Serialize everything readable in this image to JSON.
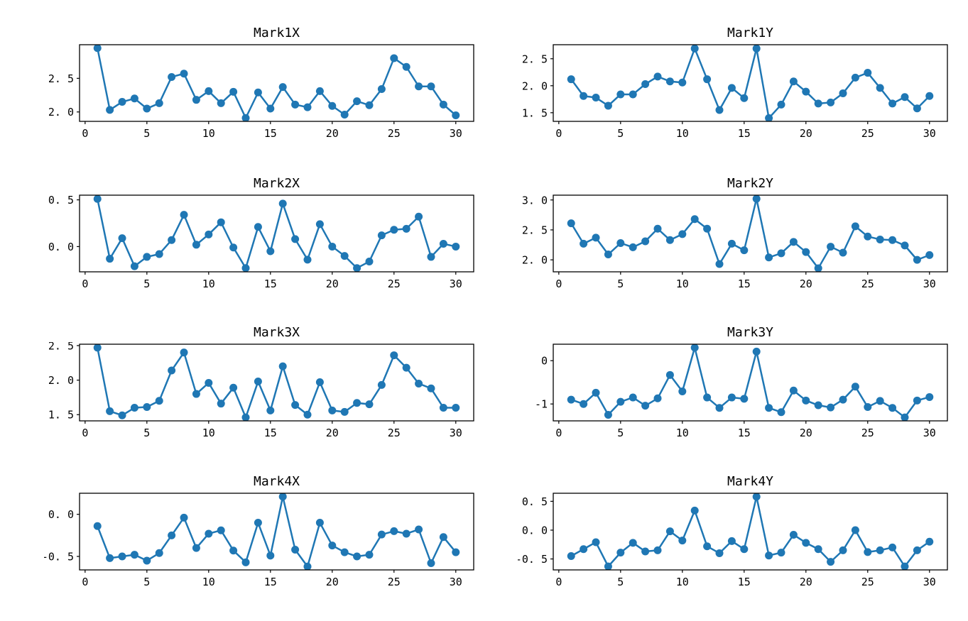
{
  "figure": {
    "background": "#ffffff"
  },
  "chart_data": {
    "type": "line",
    "marker": "circle",
    "grid": false,
    "legend": null,
    "line_color": "#1f77b4",
    "axis_color": "#000000",
    "x": [
      1,
      2,
      3,
      4,
      5,
      6,
      7,
      8,
      9,
      10,
      11,
      12,
      13,
      14,
      15,
      16,
      17,
      18,
      19,
      20,
      21,
      22,
      23,
      24,
      25,
      26,
      27,
      28,
      29,
      30
    ],
    "xlim": [
      -0.45,
      31.45
    ],
    "x_ticks": [
      {
        "v": 0,
        "label": "0"
      },
      {
        "v": 5,
        "label": "5"
      },
      {
        "v": 10,
        "label": "10"
      },
      {
        "v": 15,
        "label": "15"
      },
      {
        "v": 20,
        "label": "20"
      },
      {
        "v": 25,
        "label": "25"
      },
      {
        "v": 30,
        "label": "30"
      }
    ],
    "subplots": [
      {
        "title": "Mark1X",
        "values": [
          2.95,
          2.03,
          2.15,
          2.2,
          2.05,
          2.13,
          2.52,
          2.57,
          2.18,
          2.31,
          2.13,
          2.3,
          1.91,
          2.29,
          2.05,
          2.37,
          2.11,
          2.07,
          2.31,
          2.09,
          1.96,
          2.16,
          2.1,
          2.34,
          2.8,
          2.67,
          2.38,
          2.38,
          2.11,
          1.95
        ],
        "ylim": [
          1.86,
          3.0
        ],
        "y_ticks": [
          {
            "v": 2.0,
            "label": "2. 0"
          },
          {
            "v": 2.5,
            "label": "2. 5"
          }
        ]
      },
      {
        "title": "Mark1Y",
        "values": [
          2.12,
          1.81,
          1.78,
          1.63,
          1.84,
          1.84,
          2.03,
          2.17,
          2.08,
          2.06,
          2.69,
          2.12,
          1.55,
          1.96,
          1.77,
          2.69,
          1.4,
          1.65,
          2.08,
          1.89,
          1.67,
          1.69,
          1.86,
          2.15,
          2.24,
          1.96,
          1.67,
          1.79,
          1.58,
          1.81
        ],
        "ylim": [
          1.34,
          2.76
        ],
        "y_ticks": [
          {
            "v": 1.5,
            "label": "1. 5"
          },
          {
            "v": 2.0,
            "label": "2. 0"
          },
          {
            "v": 2.5,
            "label": "2. 5"
          }
        ]
      },
      {
        "title": "Mark2X",
        "values": [
          0.51,
          -0.13,
          0.09,
          -0.21,
          -0.11,
          -0.08,
          0.07,
          0.34,
          0.02,
          0.13,
          0.26,
          -0.01,
          -0.23,
          0.21,
          -0.05,
          0.46,
          0.08,
          -0.14,
          0.24,
          0.0,
          -0.1,
          -0.23,
          -0.16,
          0.12,
          0.18,
          0.19,
          0.32,
          -0.11,
          0.03,
          0.0
        ],
        "ylim": [
          -0.27,
          0.55
        ],
        "y_ticks": [
          {
            "v": 0.0,
            "label": "0. 0"
          },
          {
            "v": 0.5,
            "label": "0. 5"
          }
        ]
      },
      {
        "title": "Mark2Y",
        "values": [
          2.61,
          2.27,
          2.37,
          2.09,
          2.28,
          2.21,
          2.31,
          2.52,
          2.33,
          2.43,
          2.68,
          2.52,
          1.93,
          2.27,
          2.16,
          3.02,
          2.04,
          2.11,
          2.3,
          2.13,
          1.86,
          2.22,
          2.12,
          2.56,
          2.39,
          2.34,
          2.33,
          2.24,
          2.0,
          2.08
        ],
        "ylim": [
          1.8,
          3.08
        ],
        "y_ticks": [
          {
            "v": 2.0,
            "label": "2. 0"
          },
          {
            "v": 2.5,
            "label": "2. 5"
          },
          {
            "v": 3.0,
            "label": "3. 0"
          }
        ]
      },
      {
        "title": "Mark3X",
        "values": [
          2.47,
          1.55,
          1.49,
          1.6,
          1.61,
          1.7,
          2.14,
          2.4,
          1.8,
          1.96,
          1.66,
          1.89,
          1.46,
          1.98,
          1.56,
          2.2,
          1.64,
          1.5,
          1.97,
          1.56,
          1.54,
          1.67,
          1.65,
          1.93,
          2.36,
          2.18,
          1.95,
          1.88,
          1.6,
          1.6
        ],
        "ylim": [
          1.41,
          2.52
        ],
        "y_ticks": [
          {
            "v": 1.5,
            "label": "1. 5"
          },
          {
            "v": 2.0,
            "label": "2. 0"
          },
          {
            "v": 2.5,
            "label": "2. 5"
          }
        ]
      },
      {
        "title": "Mark3Y",
        "values": [
          -0.9,
          -1.0,
          -0.74,
          -1.25,
          -0.95,
          -0.85,
          -1.04,
          -0.87,
          -0.33,
          -0.71,
          0.3,
          -0.85,
          -1.09,
          -0.85,
          -0.88,
          0.21,
          -1.09,
          -1.19,
          -0.69,
          -0.92,
          -1.03,
          -1.08,
          -0.9,
          -0.6,
          -1.07,
          -0.93,
          -1.09,
          -1.31,
          -0.92,
          -0.84
        ],
        "ylim": [
          -1.39,
          0.38
        ],
        "y_ticks": [
          {
            "v": -1,
            "label": "-1"
          },
          {
            "v": 0,
            "label": "0"
          }
        ]
      },
      {
        "title": "Mark4X",
        "values": [
          -0.14,
          -0.52,
          -0.5,
          -0.48,
          -0.55,
          -0.46,
          -0.25,
          -0.04,
          -0.4,
          -0.23,
          -0.19,
          -0.43,
          -0.57,
          -0.1,
          -0.49,
          0.21,
          -0.42,
          -0.62,
          -0.1,
          -0.37,
          -0.45,
          -0.5,
          -0.48,
          -0.24,
          -0.2,
          -0.23,
          -0.18,
          -0.58,
          -0.27,
          -0.45
        ],
        "ylim": [
          -0.66,
          0.25
        ],
        "y_ticks": [
          {
            "v": -0.5,
            "label": "-0. 5"
          },
          {
            "v": 0.0,
            "label": "0. 0"
          }
        ]
      },
      {
        "title": "Mark4Y",
        "values": [
          -0.45,
          -0.33,
          -0.21,
          -0.63,
          -0.39,
          -0.22,
          -0.37,
          -0.35,
          -0.02,
          -0.18,
          0.34,
          -0.28,
          -0.4,
          -0.19,
          -0.33,
          0.58,
          -0.44,
          -0.39,
          -0.08,
          -0.22,
          -0.33,
          -0.55,
          -0.35,
          0.0,
          -0.38,
          -0.35,
          -0.3,
          -0.63,
          -0.35,
          -0.2
        ],
        "ylim": [
          -0.69,
          0.64
        ],
        "y_ticks": [
          {
            "v": -0.5,
            "label": "-0. 5"
          },
          {
            "v": 0.0,
            "label": "0. 0"
          },
          {
            "v": 0.5,
            "label": "0. 5"
          }
        ]
      }
    ]
  }
}
